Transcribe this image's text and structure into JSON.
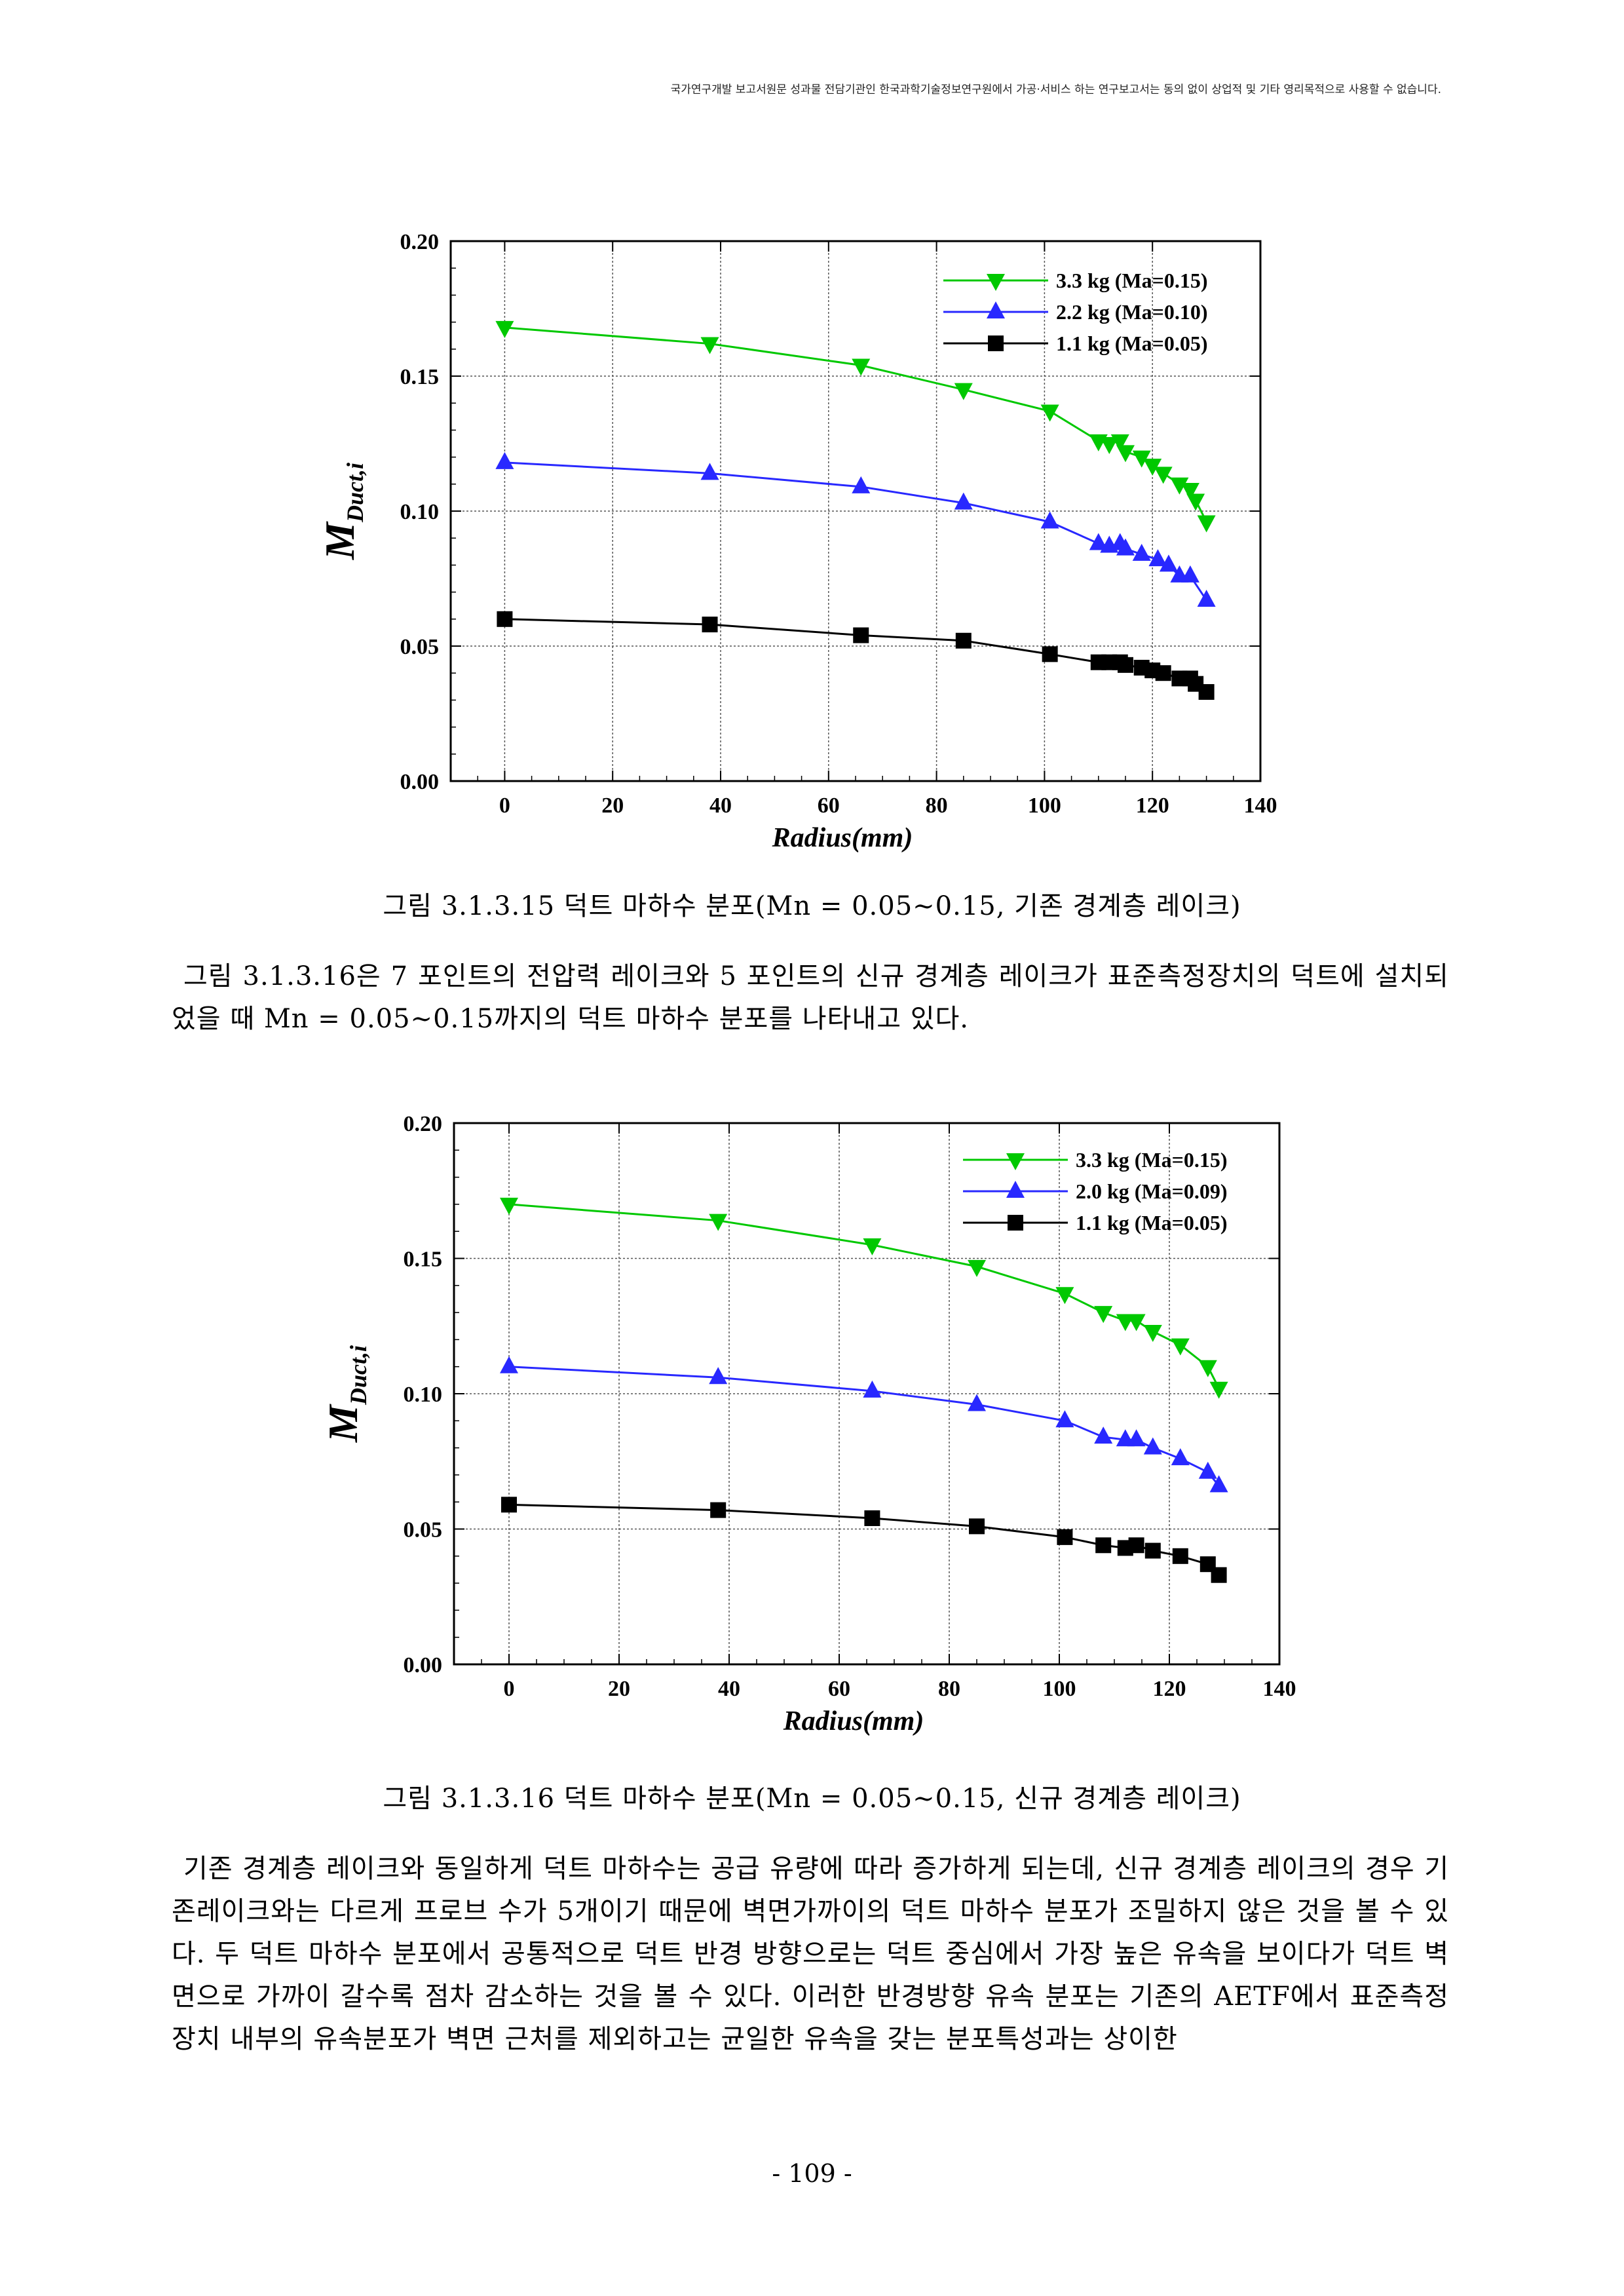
{
  "header": {
    "notice": "국가연구개발 보고서원문 성과물 전담기관인 한국과학기술정보연구원에서 가공·서비스 하는 연구보고서는 동의 없이 상업적 및 기타 영리목적으로 사용할 수 없습니다."
  },
  "captions": {
    "fig1": "그림 3.1.3.15 덕트 마하수 분포(Mn = 0.05∼0.15, 기존 경계층 레이크)",
    "fig2": "그림 3.1.3.16  덕트 마하수 분포(Mn = 0.05∼0.15, 신규 경계층 레이크)"
  },
  "body": {
    "para1": "그림 3.1.3.16은 7 포인트의 전압력 레이크와 5 포인트의 신규 경계층 레이크가 표준측정장치의 덕트에 설치되었을 때 Mn = 0.05∼0.15까지의 덕트 마하수 분포를 나타내고 있다.",
    "para2": "기존 경계층 레이크와 동일하게 덕트 마하수는 공급 유량에 따라 증가하게 되는데, 신규 경계층 레이크의 경우 기존레이크와는 다르게 프로브 수가 5개이기 때문에 벽면가까이의 덕트 마하수 분포가 조밀하지 않은 것을 볼 수 있다. 두 덕트 마하수 분포에서 공통적으로 덕트 반경 방향으로는 덕트 중심에서 가장 높은 유속을 보이다가 덕트 벽면으로 가까이 갈수록 점차 감소하는 것을 볼 수 있다. 이러한 반경방향 유속 분포는 기존의 AETF에서 표준측정장치 내부의 유속분포가 벽면 근처를 제외하고는 균일한 유속을 갖는 분포특성과는 상이한"
  },
  "footer": {
    "page_number": "- 109 -"
  },
  "chart_data": [
    {
      "type": "line",
      "xlabel": "Radius(mm)",
      "ylabel_main": "M",
      "ylabel_sub": "Duct,i",
      "xlim": [
        -10,
        140
      ],
      "ylim": [
        0,
        0.2
      ],
      "xticks": [
        "0",
        "20",
        "40",
        "60",
        "80",
        "100",
        "120",
        "140"
      ],
      "yticks": [
        "0.00",
        "0.05",
        "0.10",
        "0.15",
        "0.20"
      ],
      "grid": true,
      "legend_position": "top-right",
      "series": [
        {
          "name": "3.3 kg (Ma=0.15)",
          "color": "#00c800",
          "marker": "triangle-down",
          "x": [
            0,
            38,
            66,
            85,
            101,
            110,
            112,
            114,
            115,
            118,
            120,
            122,
            125,
            127,
            128,
            130
          ],
          "y": [
            0.168,
            0.162,
            0.154,
            0.145,
            0.137,
            0.126,
            0.125,
            0.126,
            0.122,
            0.12,
            0.117,
            0.114,
            0.11,
            0.108,
            0.104,
            0.096
          ]
        },
        {
          "name": "2.2 kg (Ma=0.10)",
          "color": "#2828ff",
          "marker": "triangle-up",
          "x": [
            0,
            38,
            66,
            85,
            101,
            110,
            112,
            114,
            115,
            118,
            121,
            123,
            125,
            127,
            130
          ],
          "y": [
            0.118,
            0.114,
            0.109,
            0.103,
            0.096,
            0.088,
            0.087,
            0.088,
            0.086,
            0.084,
            0.082,
            0.08,
            0.076,
            0.076,
            0.067
          ]
        },
        {
          "name": "1.1 kg (Ma=0.05)",
          "color": "#000000",
          "marker": "square",
          "x": [
            0,
            38,
            66,
            85,
            101,
            110,
            112,
            114,
            115,
            118,
            120,
            122,
            125,
            127,
            128,
            130
          ],
          "y": [
            0.06,
            0.058,
            0.054,
            0.052,
            0.047,
            0.044,
            0.044,
            0.044,
            0.043,
            0.042,
            0.041,
            0.04,
            0.038,
            0.038,
            0.036,
            0.033
          ]
        }
      ]
    },
    {
      "type": "line",
      "xlabel": "Radius(mm)",
      "ylabel_main": "M",
      "ylabel_sub": "Duct,i",
      "xlim": [
        -10,
        140
      ],
      "ylim": [
        0,
        0.2
      ],
      "xticks": [
        "0",
        "20",
        "40",
        "60",
        "80",
        "100",
        "120",
        "140"
      ],
      "yticks": [
        "0.00",
        "0.05",
        "0.10",
        "0.15",
        "0.20"
      ],
      "grid": true,
      "legend_position": "top-right",
      "series": [
        {
          "name": "3.3 kg (Ma=0.15)",
          "color": "#00c800",
          "marker": "triangle-down",
          "x": [
            0,
            38,
            66,
            85,
            101,
            108,
            112,
            114,
            117,
            122,
            127,
            129
          ],
          "y": [
            0.17,
            0.164,
            0.155,
            0.147,
            0.137,
            0.13,
            0.127,
            0.127,
            0.123,
            0.118,
            0.11,
            0.102
          ]
        },
        {
          "name": "2.0 kg (Ma=0.09)",
          "color": "#2828ff",
          "marker": "triangle-up",
          "x": [
            0,
            38,
            66,
            85,
            101,
            108,
            112,
            114,
            117,
            122,
            127,
            129
          ],
          "y": [
            0.11,
            0.106,
            0.101,
            0.096,
            0.09,
            0.084,
            0.083,
            0.083,
            0.08,
            0.076,
            0.071,
            0.066
          ]
        },
        {
          "name": "1.1 kg (Ma=0.05)",
          "color": "#000000",
          "marker": "square",
          "x": [
            0,
            38,
            66,
            85,
            101,
            108,
            112,
            114,
            117,
            122,
            127,
            129
          ],
          "y": [
            0.059,
            0.057,
            0.054,
            0.051,
            0.047,
            0.044,
            0.043,
            0.044,
            0.042,
            0.04,
            0.037,
            0.033
          ]
        }
      ]
    }
  ]
}
